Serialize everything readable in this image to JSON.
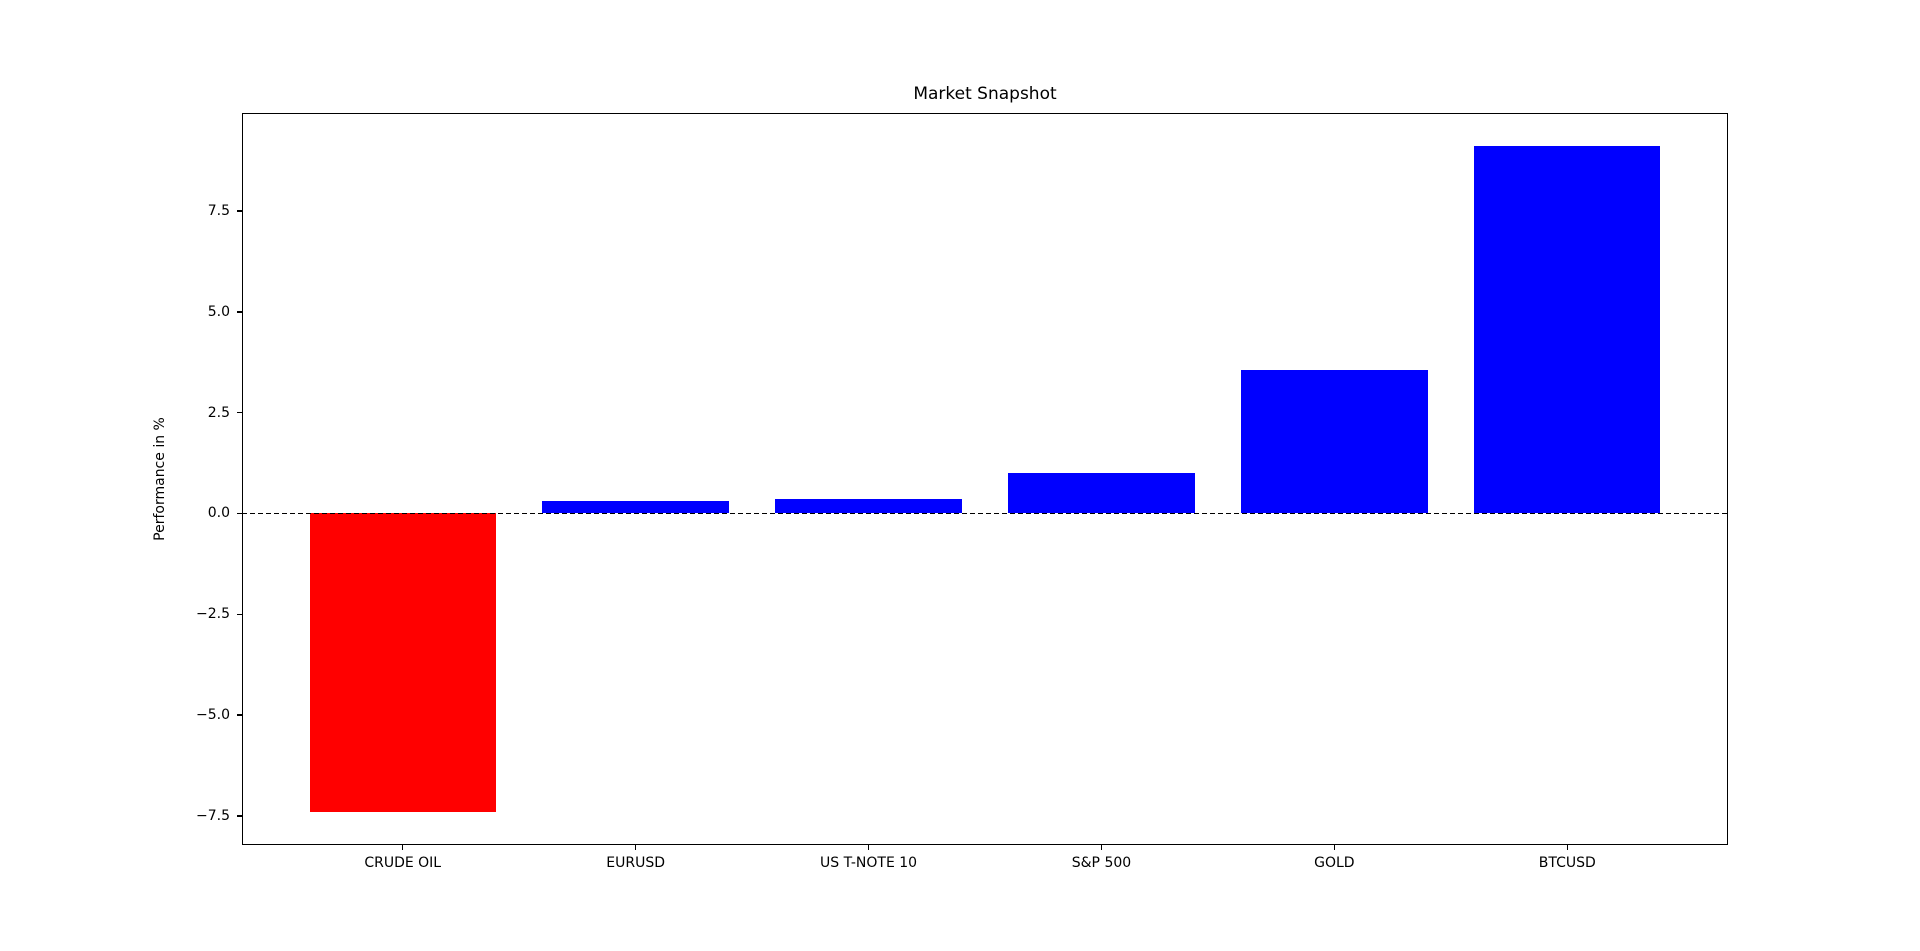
{
  "chart_data": {
    "type": "bar",
    "title": "Market Snapshot",
    "xlabel": "",
    "ylabel": "Performance in %",
    "categories": [
      "CRUDE OIL",
      "EURUSD",
      "US T-NOTE 10",
      "S&P 500",
      "GOLD",
      "BTCUSD"
    ],
    "values": [
      -7.4,
      0.3,
      0.35,
      1.0,
      3.55,
      9.1
    ],
    "bar_colors": [
      "#ff0000",
      "#0000ff",
      "#0000ff",
      "#0000ff",
      "#0000ff",
      "#0000ff"
    ],
    "negative_color": "#ff0000",
    "positive_color": "#0000ff",
    "ylim": [
      -8.22,
      9.93
    ],
    "xlim": [
      -0.69,
      5.69
    ],
    "bar_width": 0.8,
    "yticks": {
      "values": [
        -7.5,
        -5.0,
        -2.5,
        0.0,
        2.5,
        5.0,
        7.5
      ],
      "labels": [
        "−7.5",
        "−5.0",
        "−2.5",
        "0.0",
        "2.5",
        "5.0",
        "7.5"
      ]
    },
    "zero_line": {
      "y": 0,
      "style": "dashed",
      "color": "#000000"
    },
    "grid": false,
    "legend": null,
    "background_color": "#ffffff",
    "spine_color": "#000000"
  }
}
